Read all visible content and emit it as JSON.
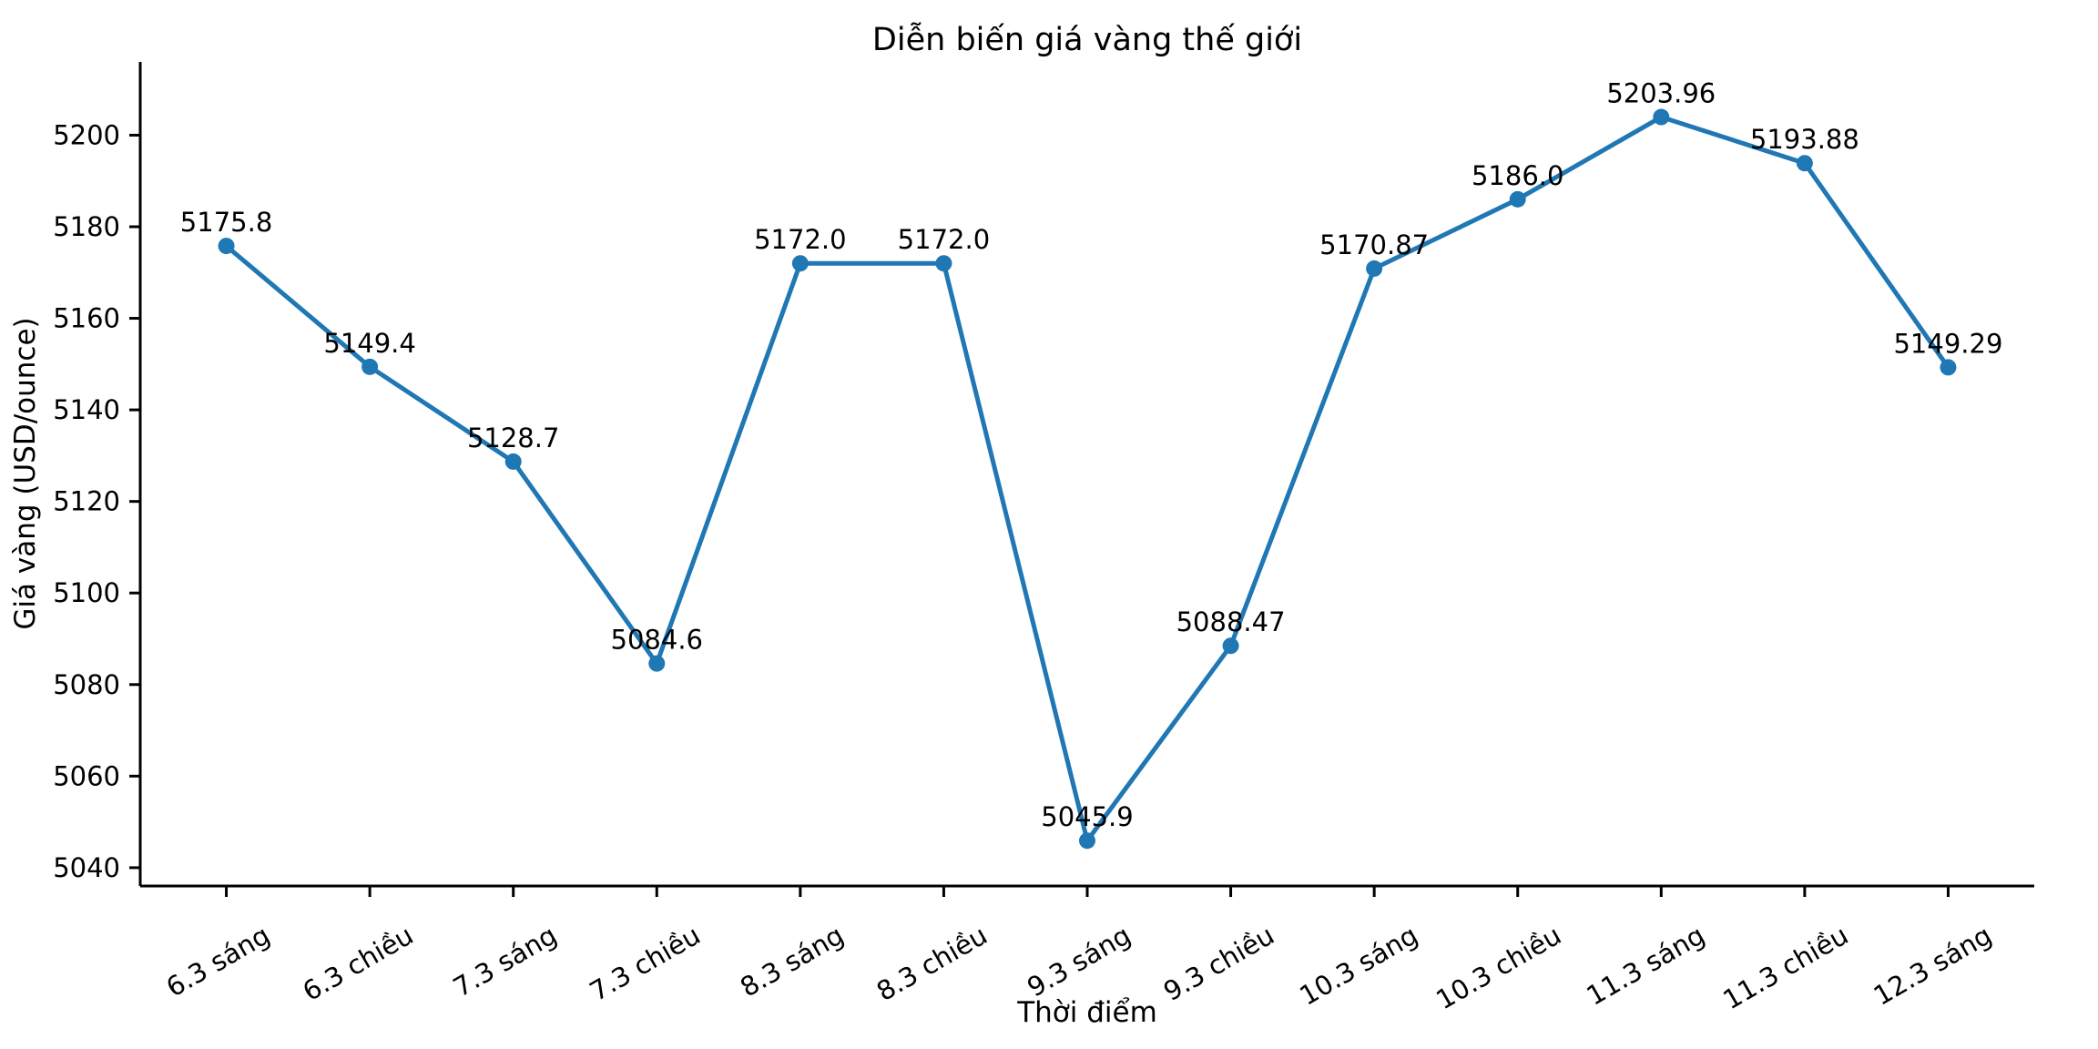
{
  "figure": {
    "background_color": "#ffffff",
    "text_color": "#000000"
  },
  "chart_data": {
    "type": "line",
    "title": "Diễn biến giá vàng thế giới",
    "xlabel": "Thời điểm",
    "ylabel": "Giá vàng (USD/ounce)",
    "categories": [
      "6.3 sáng",
      "6.3 chiều",
      "7.3 sáng",
      "7.3 chiều",
      "8.3 sáng",
      "8.3 chiều",
      "9.3 sáng",
      "9.3 chiều",
      "10.3 sáng",
      "10.3 chiều",
      "11.3 sáng",
      "11.3 chiều",
      "12.3 sáng"
    ],
    "values": [
      5175.8,
      5149.4,
      5128.7,
      5084.6,
      5172.0,
      5172.0,
      5045.9,
      5088.47,
      5170.87,
      5186.0,
      5203.96,
      5193.88,
      5149.29
    ],
    "point_labels": [
      "5175.8",
      "5149.4",
      "5128.7",
      "5084.6",
      "5172.0",
      "5172.0",
      "5045.9",
      "5088.47",
      "5170.87",
      "5186.0",
      "5203.96",
      "5193.88",
      "5149.29"
    ],
    "yticks": [
      5040,
      5060,
      5080,
      5100,
      5120,
      5140,
      5160,
      5180,
      5200
    ],
    "ylim": [
      5036,
      5216
    ],
    "xlim_index": [
      -0.6,
      12.6
    ],
    "line_color": "#1f77b4",
    "marker": "circle",
    "grid": false,
    "legend": "none",
    "x_tick_rotation_deg": 30
  }
}
